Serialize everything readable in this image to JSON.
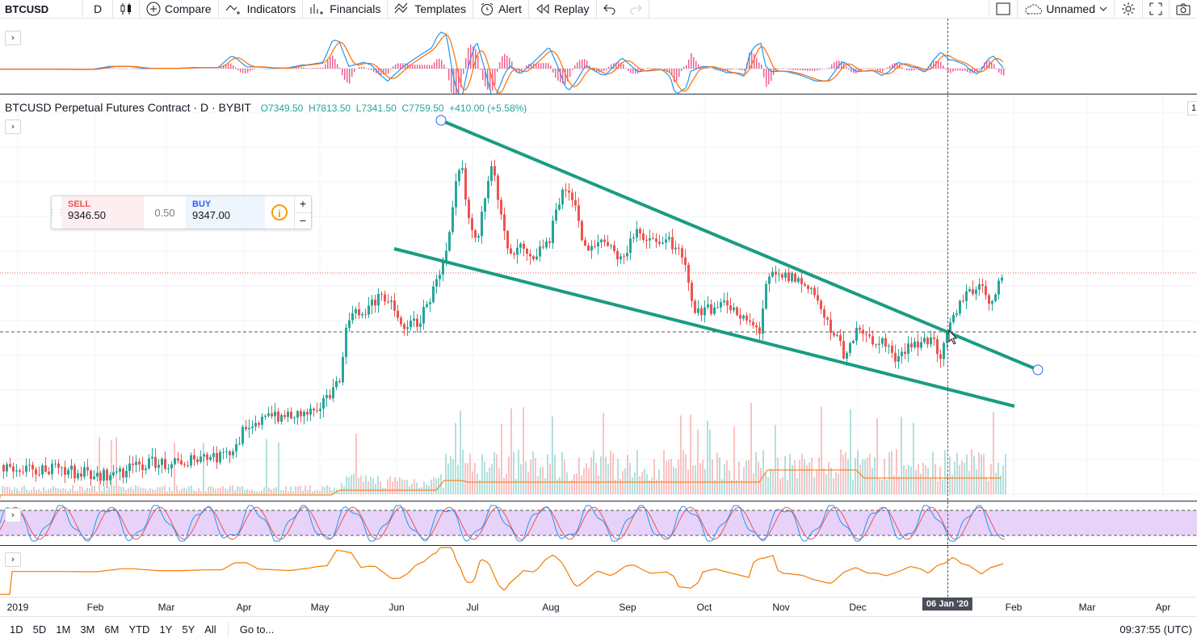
{
  "toolbar": {
    "symbol": "BTCUSD",
    "interval": "D",
    "compare": "Compare",
    "indicators": "Indicators",
    "financials": "Financials",
    "templates": "Templates",
    "alert": "Alert",
    "replay": "Replay",
    "layout_name": "Unnamed"
  },
  "legend": {
    "title": "BTCUSD Perpetual Futures Contract · D · BYBIT",
    "open": "7349.50",
    "high": "7813.50",
    "low": "7341.50",
    "close": "7759.50",
    "change": "+410.00 (+5.58%)"
  },
  "trade_panel": {
    "sell_label": "SELL",
    "sell_price": "9346.50",
    "spread": "0.50",
    "buy_label": "BUY",
    "buy_price": "9347.00",
    "plus": "+",
    "minus": "−"
  },
  "time_axis": {
    "labels": [
      "2019",
      "Feb",
      "Mar",
      "Apr",
      "May",
      "Jun",
      "Jul",
      "Aug",
      "Sep",
      "Oct",
      "Nov",
      "Dec",
      "Feb",
      "Mar",
      "Apr"
    ],
    "crosshair_label": "06 Jan '20"
  },
  "bottom_bar": {
    "ranges": [
      "1D",
      "5D",
      "1M",
      "3M",
      "6M",
      "YTD",
      "1Y",
      "5Y",
      "All"
    ],
    "goto": "Go to...",
    "clock": "09:37:55 (UTC)"
  },
  "colors": {
    "up": "#26a69a",
    "down": "#ef5350",
    "trendline": "#1a9c82",
    "stoch_band": "#e1c8f7",
    "macd_line": "#2196f3",
    "signal_line": "#ff6d00",
    "osc_line": "#f57c00"
  },
  "chart_data": {
    "type": "candlestick",
    "symbol": "BTCUSD",
    "interval": "D",
    "exchange": "BYBIT",
    "last_candle": {
      "open": 7349.5,
      "high": 7813.5,
      "low": 7341.5,
      "close": 7759.5,
      "change": 410.0,
      "change_pct": 5.58
    },
    "x_axis_labels": [
      "2019",
      "Feb",
      "Mar",
      "Apr",
      "May",
      "Jun",
      "Jul",
      "Aug",
      "Sep",
      "Oct",
      "Nov",
      "Dec",
      "06 Jan '20",
      "Feb",
      "Mar",
      "Apr"
    ],
    "panes": [
      "MACD",
      "Price",
      "Volume",
      "Stochastic RSI",
      "Oscillator"
    ],
    "drawings": [
      "upper trendline (descending)",
      "lower trendline (descending) — falling wedge"
    ]
  }
}
